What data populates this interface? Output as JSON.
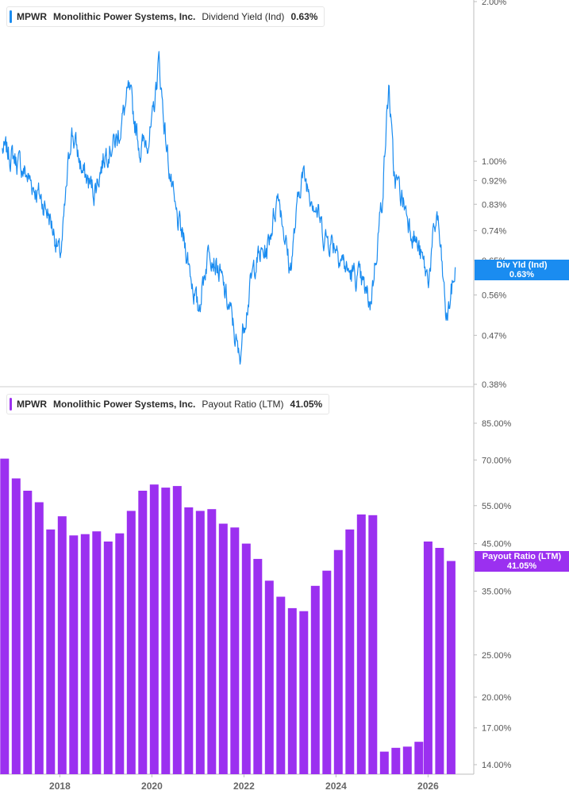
{
  "panels": [
    {
      "ticker": "MPWR",
      "company": "Monolithic Power Systems, Inc.",
      "metric": "Dividend Yield (Ind)",
      "value": "0.63%",
      "tag_line1": "Div Yld (Ind)",
      "tag_line2": "0.63%",
      "color": "#1a8cf0"
    },
    {
      "ticker": "MPWR",
      "company": "Monolithic Power Systems, Inc.",
      "metric": "Payout Ratio (LTM)",
      "value": "41.05%",
      "tag_line1": "Payout Ratio (LTM)",
      "tag_line2": "41.05%",
      "color": "#9b30f0"
    }
  ],
  "chart_data": [
    {
      "type": "line",
      "scale": "log",
      "ylim": [
        0.38,
        2.0
      ],
      "y_ticks": [
        "2.00%",
        "1.00%",
        "0.92%",
        "0.83%",
        "0.74%",
        "0.65%",
        "0.56%",
        "0.47%",
        "0.38%"
      ],
      "y_tick_values": [
        2.0,
        1.0,
        0.92,
        0.83,
        0.74,
        0.65,
        0.56,
        0.47,
        0.38
      ],
      "x": [
        2016.75,
        2017.0,
        2017.25,
        2017.5,
        2017.75,
        2017.9,
        2018.0,
        2018.05,
        2018.25,
        2018.5,
        2018.75,
        2019.0,
        2019.25,
        2019.5,
        2019.75,
        2020.0,
        2020.15,
        2020.3,
        2020.5,
        2020.75,
        2021.0,
        2021.25,
        2021.5,
        2021.75,
        2021.9,
        2022.0,
        2022.25,
        2022.5,
        2022.75,
        2023.0,
        2023.25,
        2023.5,
        2023.75,
        2024.0,
        2024.25,
        2024.5,
        2024.75,
        2025.0,
        2025.15,
        2025.25,
        2025.5,
        2025.75,
        2026.0,
        2026.2,
        2026.4,
        2026.6
      ],
      "values": [
        1.05,
        1.02,
        0.95,
        0.88,
        0.8,
        0.72,
        0.66,
        0.7,
        1.15,
        0.95,
        0.88,
        1.05,
        1.1,
        1.35,
        1.05,
        1.15,
        1.55,
        1.1,
        0.8,
        0.68,
        0.52,
        0.7,
        0.6,
        0.5,
        0.42,
        0.5,
        0.65,
        0.68,
        0.88,
        0.62,
        0.95,
        0.86,
        0.72,
        0.7,
        0.62,
        0.6,
        0.54,
        0.85,
        1.4,
        0.95,
        0.82,
        0.7,
        0.6,
        0.8,
        0.5,
        0.63
      ],
      "series": [
        {
          "name": "Div Yld (Ind)"
        }
      ]
    },
    {
      "type": "bar",
      "scale": "log",
      "ylim": [
        13.5,
        95
      ],
      "y_ticks": [
        "85.00%",
        "70.00%",
        "55.00%",
        "45.00%",
        "35.00%",
        "25.00%",
        "20.00%",
        "17.00%",
        "14.00%"
      ],
      "y_tick_values": [
        85,
        70,
        55,
        45,
        35,
        25,
        20,
        17,
        14
      ],
      "x_labels": [
        "2018",
        "2020",
        "2022",
        "2024",
        "2026"
      ],
      "x_label_values": [
        2018,
        2020,
        2022,
        2024,
        2026
      ],
      "x": [
        2016.8,
        2017.05,
        2017.3,
        2017.55,
        2017.8,
        2018.05,
        2018.3,
        2018.55,
        2018.8,
        2019.05,
        2019.3,
        2019.55,
        2019.8,
        2020.05,
        2020.3,
        2020.55,
        2020.8,
        2021.05,
        2021.3,
        2021.55,
        2021.8,
        2022.05,
        2022.3,
        2022.55,
        2022.8,
        2023.05,
        2023.3,
        2023.55,
        2023.8,
        2024.05,
        2024.3,
        2024.55,
        2024.8,
        2025.05,
        2025.3,
        2025.55,
        2025.8,
        2026.0,
        2026.25,
        2026.5
      ],
      "values": [
        70.5,
        63.5,
        59.5,
        56.0,
        48.5,
        52.0,
        47.0,
        47.3,
        48.0,
        45.5,
        47.5,
        53.5,
        59.5,
        61.5,
        60.5,
        61.0,
        54.5,
        53.5,
        54.0,
        50.0,
        49.0,
        45.0,
        41.5,
        37.0,
        34.0,
        32.0,
        31.5,
        36.0,
        39.0,
        43.5,
        48.5,
        52.5,
        52.3,
        15.0,
        15.3,
        15.4,
        15.8,
        45.5,
        44.0,
        41.05
      ],
      "series": [
        {
          "name": "Payout Ratio (LTM)"
        }
      ]
    }
  ]
}
